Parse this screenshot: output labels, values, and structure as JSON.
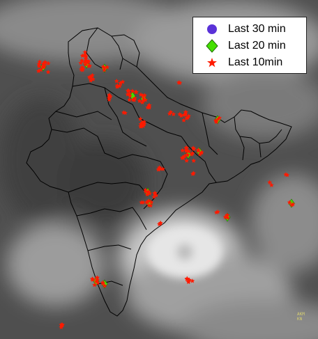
{
  "legend": {
    "items": [
      {
        "label": "Last 30 min",
        "symbol": "circle-icon",
        "color": "#5a32d8"
      },
      {
        "label": "Last 20 min",
        "symbol": "diamond-icon",
        "color": "#44e000"
      },
      {
        "label": "Last 10min",
        "symbol": "star-icon",
        "color": "#ff1a00"
      }
    ]
  },
  "credit": {
    "line1": "AKM",
    "line2": "KN"
  },
  "colors": {
    "background": "#555555",
    "boundary": "#000000",
    "lightning_recent": "#ff1a00",
    "lightning_older": "#44e000"
  }
}
